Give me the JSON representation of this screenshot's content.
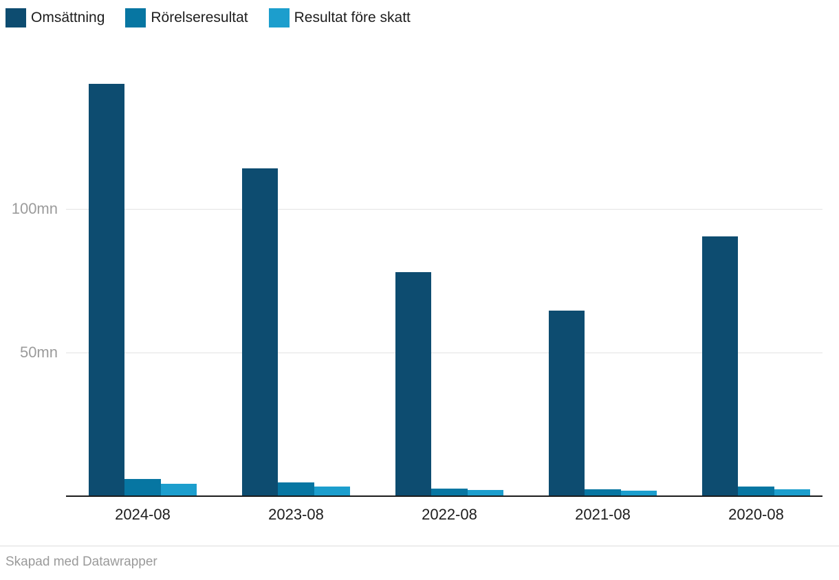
{
  "legend": {
    "items": [
      {
        "label": "Omsättning",
        "color": "#0d4c70"
      },
      {
        "label": "Rörelseresultat",
        "color": "#0776a2"
      },
      {
        "label": "Resultat före skatt",
        "color": "#1c9ecd"
      }
    ]
  },
  "footer": {
    "text": "Skapad med Datawrapper"
  },
  "chart_data": {
    "type": "bar",
    "title": "",
    "categories": [
      "2024-08",
      "2023-08",
      "2022-08",
      "2021-08",
      "2020-08"
    ],
    "series": [
      {
        "name": "Omsättning",
        "color": "#0d4c70",
        "values": [
          143.5,
          114,
          78,
          64.5,
          90.5
        ]
      },
      {
        "name": "Rörelseresultat",
        "color": "#0776a2",
        "values": [
          6,
          4.8,
          2.6,
          2.4,
          3.3
        ]
      },
      {
        "name": "Resultat före skatt",
        "color": "#1c9ecd",
        "values": [
          4.3,
          3.3,
          2.1,
          1.9,
          2.4
        ]
      }
    ],
    "xlabel": "",
    "ylabel": "",
    "unit": "mn",
    "yticks": [
      {
        "value": 50,
        "label": "50mn"
      },
      {
        "value": 100,
        "label": "100mn"
      }
    ],
    "ylim": [
      0,
      150
    ],
    "grid": true,
    "legend_position": "top-left"
  }
}
